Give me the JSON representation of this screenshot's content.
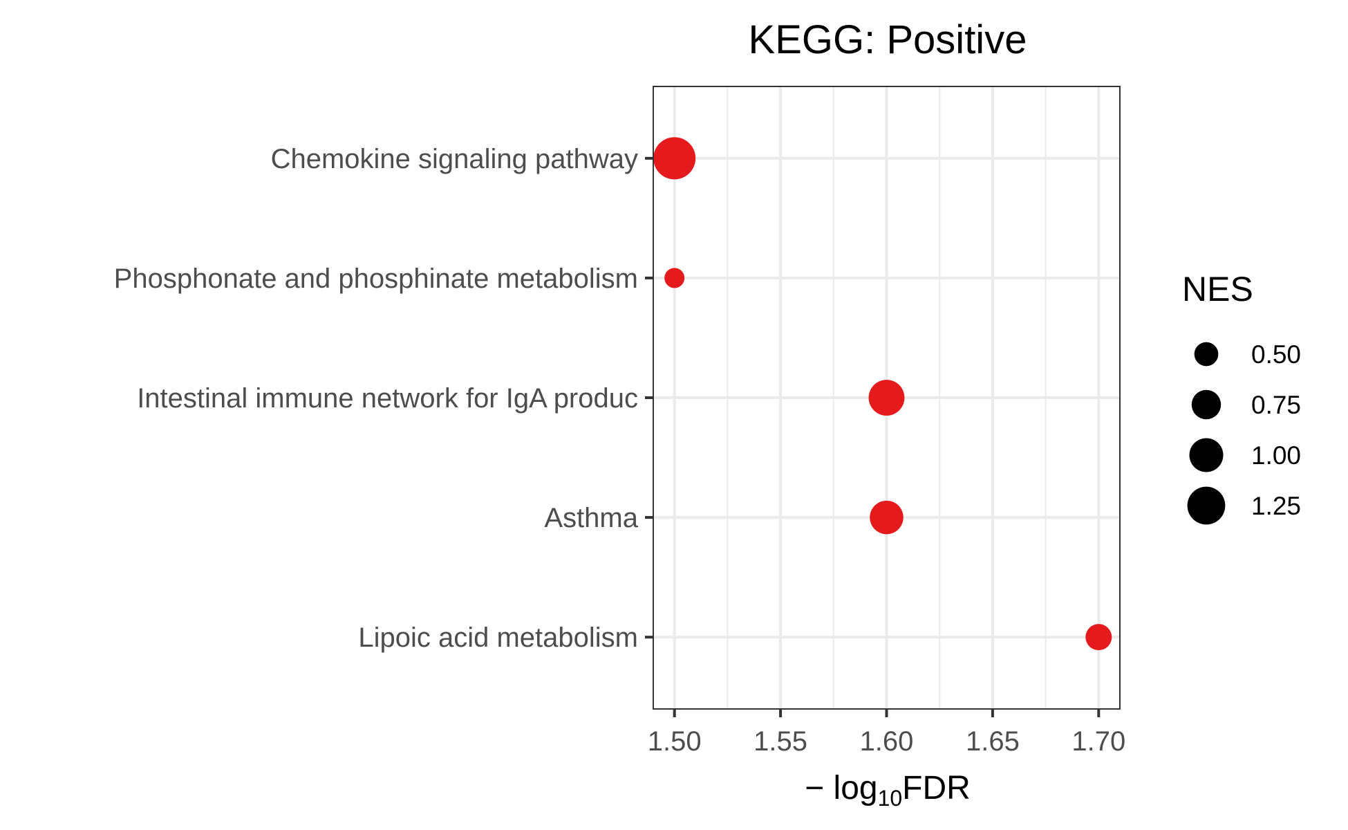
{
  "chart_data": {
    "type": "scatter",
    "title": "KEGG: Positive",
    "xlabel": {
      "prefix": "− log",
      "subscript": "10",
      "suffix": "FDR"
    },
    "ylabel": "",
    "xlim": [
      1.49,
      1.71
    ],
    "x_ticks": [
      1.5,
      1.55,
      1.6,
      1.65,
      1.7
    ],
    "x_tick_labels": [
      "1.50",
      "1.55",
      "1.60",
      "1.65",
      "1.70"
    ],
    "categories": [
      "Chemokine signaling pathway",
      "Phosphonate and phosphinate metabolism",
      "Intestinal immune network for IgA produc",
      "Asthma",
      "Lipoic acid metabolism"
    ],
    "points": [
      {
        "category": "Chemokine signaling pathway",
        "x": 1.5,
        "nes": 1.55
      },
      {
        "category": "Phosphonate and phosphinate metabolism",
        "x": 1.5,
        "nes": 0.35
      },
      {
        "category": "Intestinal immune network for IgA produc",
        "x": 1.6,
        "nes": 1.12
      },
      {
        "category": "Asthma",
        "x": 1.6,
        "nes": 0.98
      },
      {
        "category": "Lipoic acid metabolism",
        "x": 1.7,
        "nes": 0.6
      }
    ],
    "point_color": "#e41a1c",
    "size_legend": {
      "title": "NES",
      "values": [
        0.5,
        0.75,
        1.0,
        1.25
      ],
      "labels": [
        "0.50",
        "0.75",
        "1.00",
        "1.25"
      ],
      "color": "#000000",
      "placement": "right"
    },
    "grid": true
  }
}
